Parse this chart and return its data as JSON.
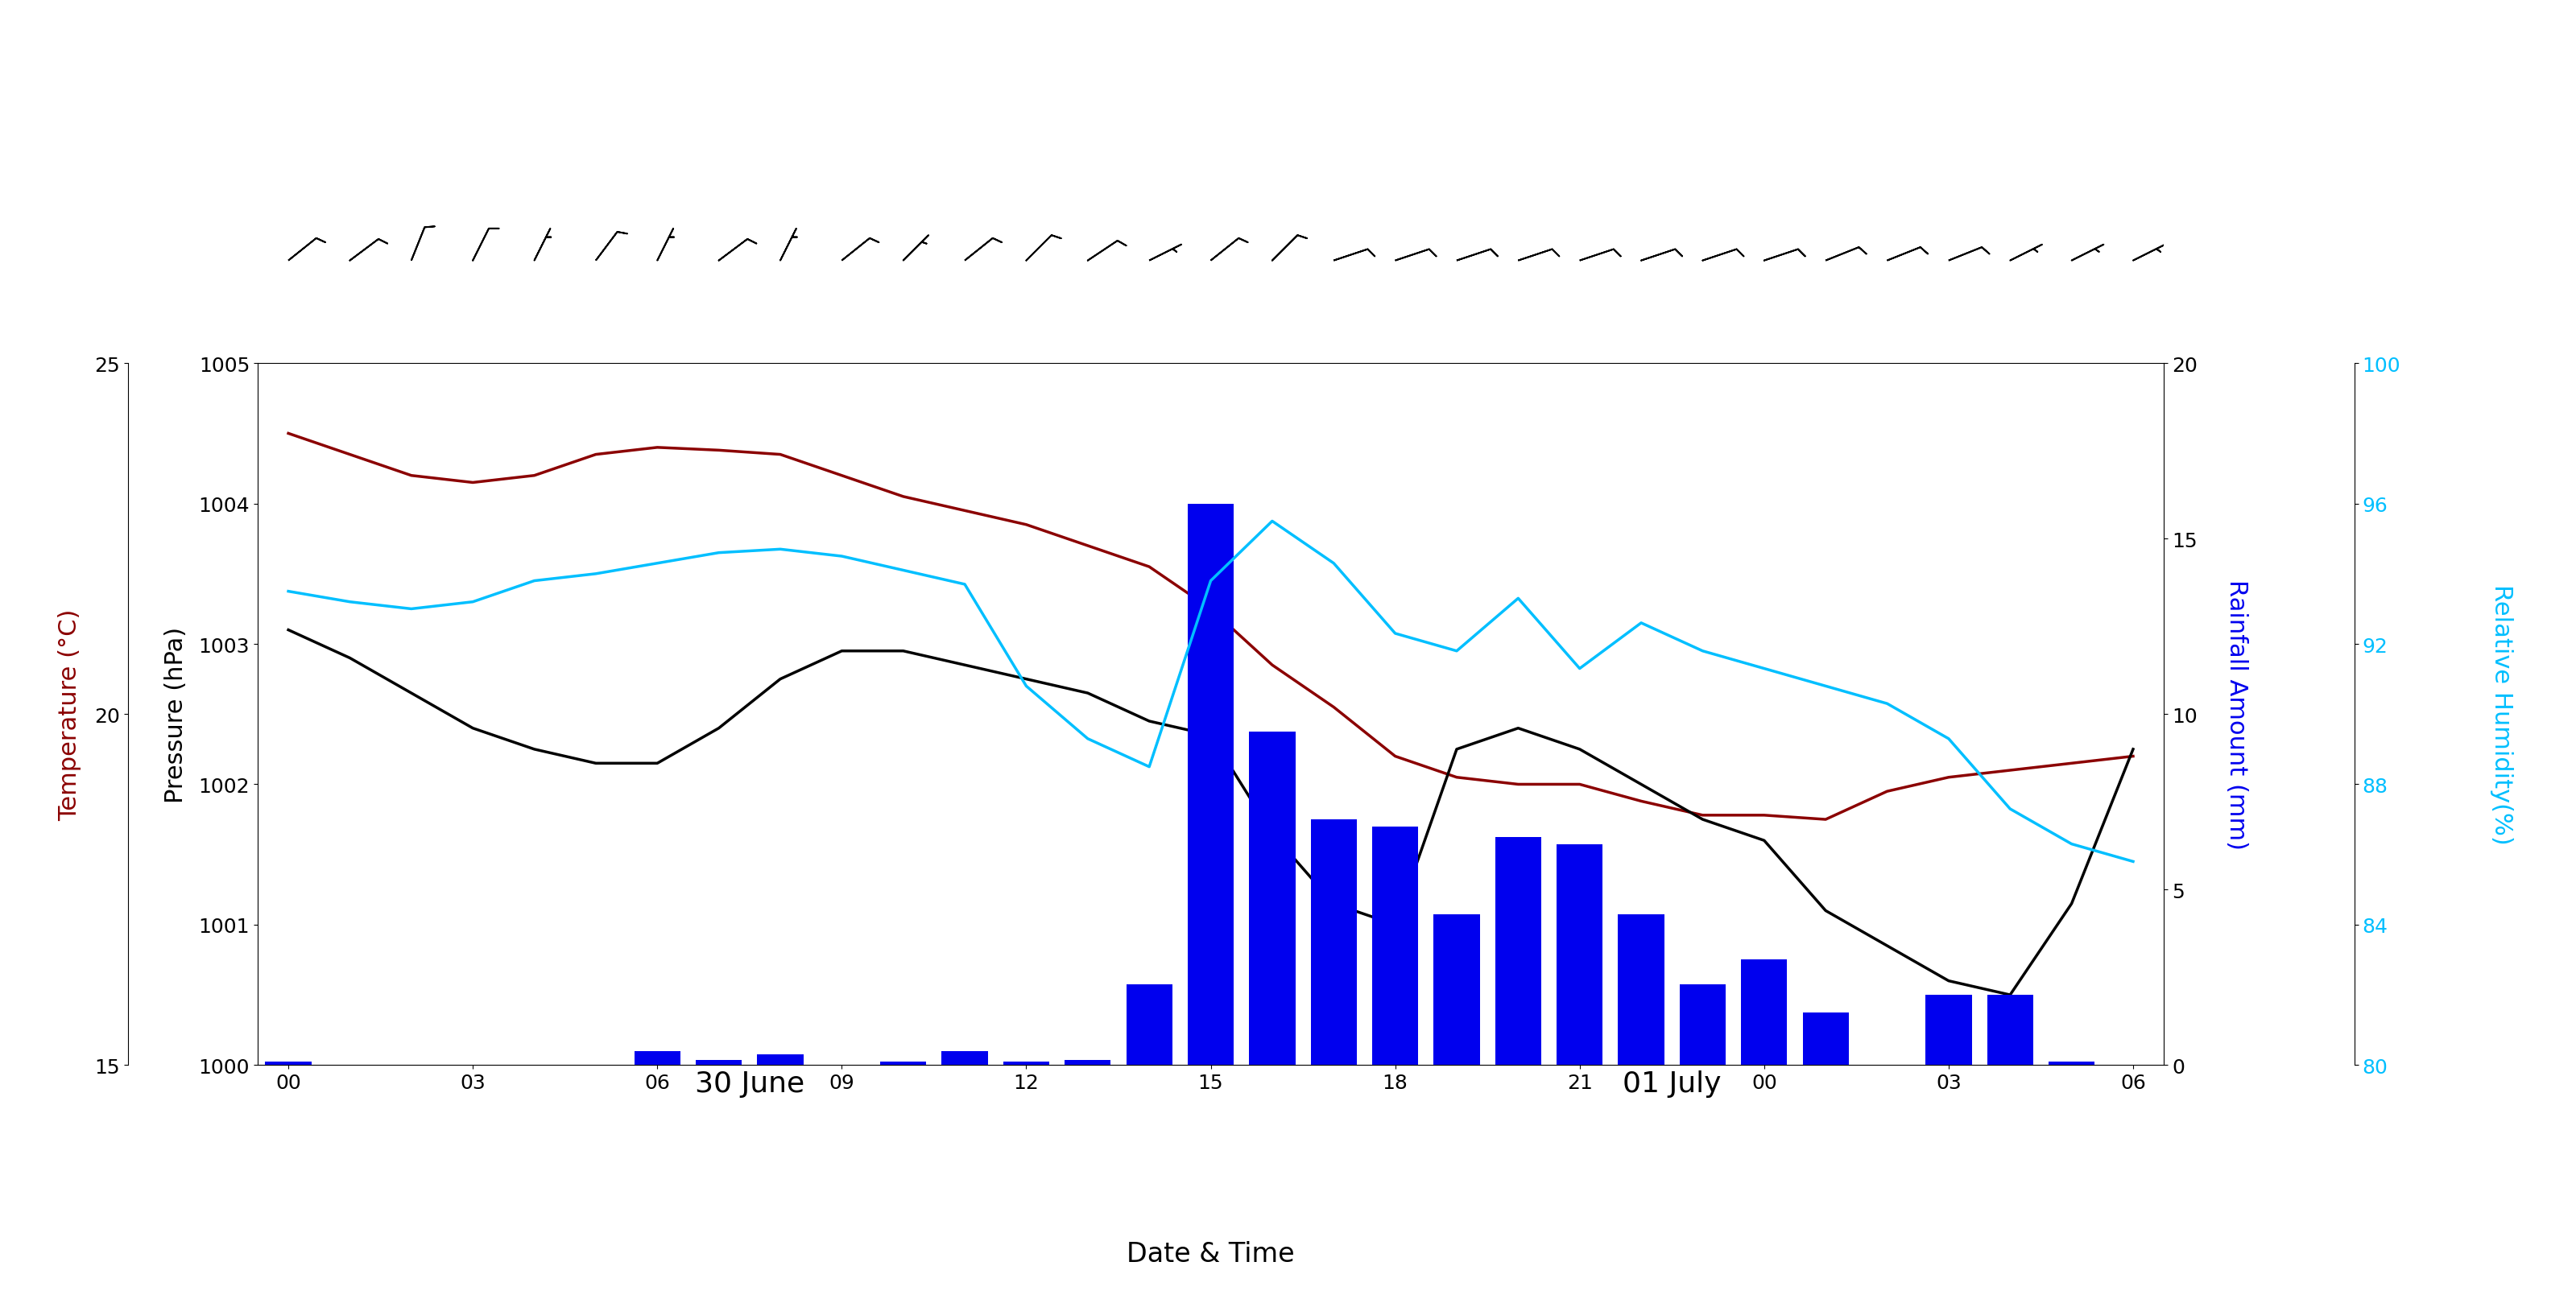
{
  "time_hours": [
    0,
    1,
    2,
    3,
    4,
    5,
    6,
    7,
    8,
    9,
    10,
    11,
    12,
    13,
    14,
    15,
    16,
    17,
    18,
    19,
    20,
    21,
    22,
    23,
    24,
    25,
    26,
    27,
    28,
    29,
    30
  ],
  "pressure": [
    1004.5,
    1004.35,
    1004.2,
    1004.15,
    1004.2,
    1004.35,
    1004.4,
    1004.38,
    1004.35,
    1004.2,
    1004.05,
    1003.95,
    1003.85,
    1003.7,
    1003.55,
    1003.25,
    1002.85,
    1002.55,
    1002.2,
    1002.05,
    1002.0,
    1002.0,
    1001.88,
    1001.78,
    1001.78,
    1001.75,
    1001.95,
    1002.05,
    1002.1,
    1002.15,
    1002.2
  ],
  "temperature": [
    21.2,
    20.8,
    20.3,
    19.8,
    19.5,
    19.3,
    19.3,
    19.8,
    20.5,
    20.9,
    20.9,
    20.7,
    20.5,
    20.3,
    19.9,
    19.7,
    18.3,
    17.3,
    17.0,
    19.5,
    19.8,
    19.5,
    19.0,
    18.5,
    18.2,
    17.2,
    16.7,
    16.2,
    16.0,
    17.3,
    19.5
  ],
  "humidity": [
    93.5,
    93.2,
    93.0,
    93.2,
    93.8,
    94.0,
    94.3,
    94.6,
    94.7,
    94.5,
    94.1,
    93.7,
    90.8,
    89.3,
    88.5,
    93.8,
    95.5,
    94.3,
    92.3,
    91.8,
    93.3,
    91.3,
    92.6,
    91.8,
    91.3,
    90.8,
    90.3,
    89.3,
    87.3,
    86.3,
    85.8
  ],
  "rainfall": [
    0.1,
    0.0,
    0.0,
    0.0,
    0.0,
    0.0,
    0.4,
    0.15,
    0.3,
    0.0,
    0.1,
    0.4,
    0.1,
    0.15,
    2.3,
    16.0,
    9.5,
    7.0,
    6.8,
    4.3,
    6.5,
    6.3,
    4.3,
    2.3,
    3.0,
    1.5,
    0.0,
    2.0,
    2.0,
    0.1,
    0.0
  ],
  "xtick_positions": [
    0,
    3,
    6,
    9,
    12,
    15,
    18,
    21,
    24,
    27,
    30
  ],
  "xtick_labels": [
    "00",
    "03",
    "06",
    "09",
    "12",
    "15",
    "18",
    "21",
    "00",
    "03",
    "06"
  ],
  "pressure_ylim": [
    1000,
    1005
  ],
  "pressure_yticks": [
    1000,
    1001,
    1002,
    1003,
    1004,
    1005
  ],
  "temp_ylim": [
    15,
    25
  ],
  "temp_yticks_shown": [
    15,
    20,
    25
  ],
  "rainfall_ylim": [
    0,
    20
  ],
  "rainfall_yticks": [
    0,
    5,
    10,
    15,
    20
  ],
  "humidity_ylim": [
    80,
    100
  ],
  "humidity_yticks_shown": [
    80,
    84,
    88,
    92,
    96,
    100
  ],
  "pressure_color": "#8B0000",
  "temperature_color": "#000000",
  "humidity_color": "#00BFFF",
  "rainfall_bar_color": "#0000EE",
  "xlabel": "Date & Time",
  "ylabel_pressure": "Pressure (hPa)",
  "ylabel_temp": "Temperature (°C)",
  "ylabel_rainfall": "Rainfall Amount (mm)",
  "ylabel_humidity": "Relative Humidity(%)",
  "date_label_june": "30 June",
  "date_label_july": "01 July",
  "barb_x": [
    0,
    1,
    2,
    3,
    4,
    5,
    6,
    7,
    8,
    9,
    10,
    11,
    12,
    13,
    14,
    15,
    16,
    17,
    18,
    19,
    20,
    21,
    22,
    23,
    24,
    25,
    26,
    27,
    28,
    29,
    30
  ],
  "barb_u": [
    -2.5,
    -2.0,
    -1.0,
    -1.5,
    -0.5,
    -1.5,
    -1.0,
    -2.0,
    -1.0,
    -2.5,
    -1.5,
    -2.5,
    -2.0,
    -3.0,
    -2.0,
    -2.5,
    -2.0,
    -3.0,
    -3.0,
    -3.0,
    -3.0,
    -3.0,
    -3.0,
    -3.0,
    -3.0,
    -2.5,
    -2.5,
    -2.5,
    -2.0,
    -2.0,
    -2.0
  ],
  "barb_v": [
    -2.0,
    -1.5,
    -2.5,
    -3.0,
    -1.0,
    -2.0,
    -2.0,
    -1.5,
    -2.0,
    -2.0,
    -1.5,
    -2.0,
    -2.0,
    -2.0,
    -1.0,
    -2.0,
    -2.0,
    -1.0,
    -1.0,
    -1.0,
    -1.0,
    -1.0,
    -1.0,
    -1.0,
    -1.0,
    -1.0,
    -1.0,
    -1.0,
    -1.0,
    -1.0,
    -1.0
  ]
}
